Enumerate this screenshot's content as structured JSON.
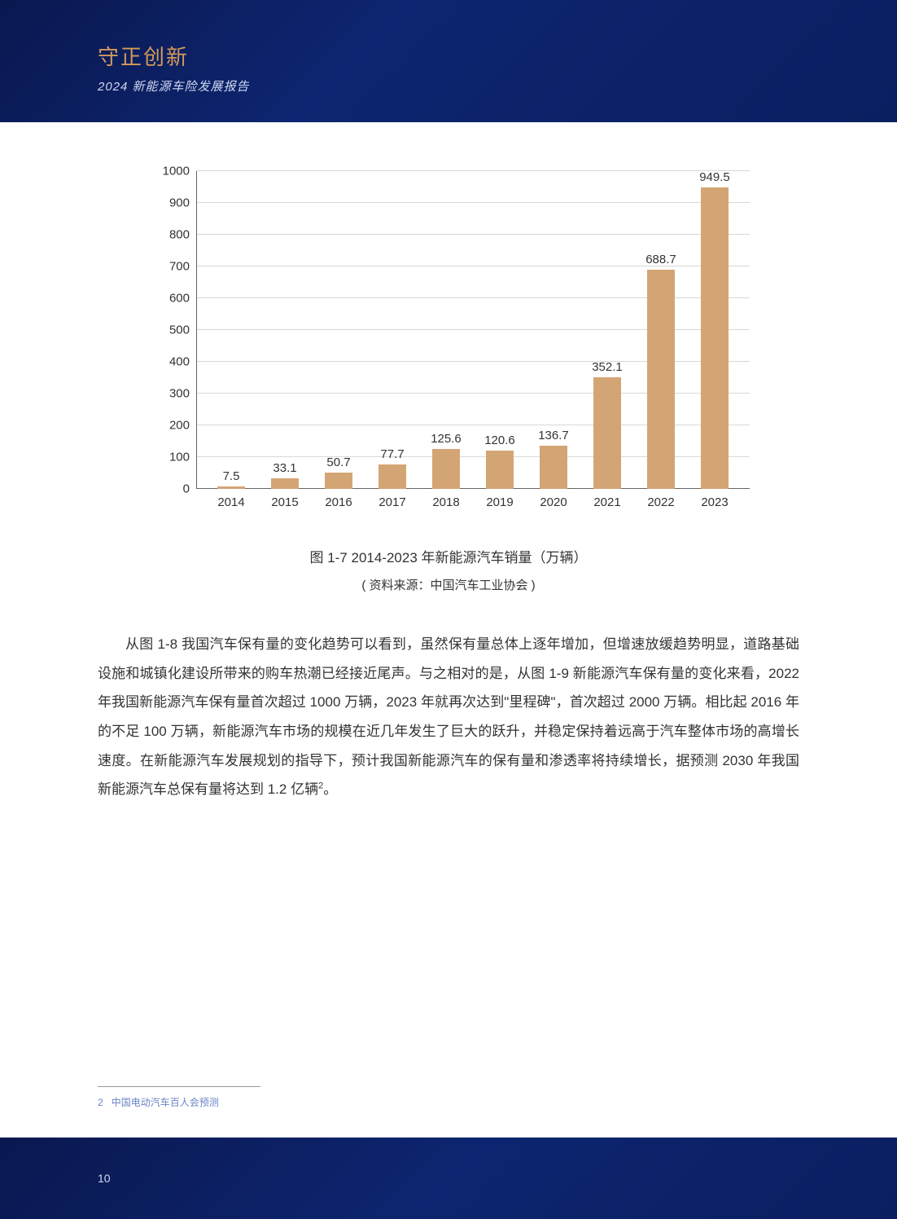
{
  "header": {
    "title": "守正创新",
    "subtitle": "2024 新能源车险发展报告"
  },
  "chart": {
    "type": "bar",
    "categories": [
      "2014",
      "2015",
      "2016",
      "2017",
      "2018",
      "2019",
      "2020",
      "2021",
      "2022",
      "2023"
    ],
    "values": [
      7.5,
      33.1,
      50.7,
      77.7,
      125.6,
      120.6,
      136.7,
      352.1,
      688.7,
      949.5
    ],
    "value_labels": [
      "7.5",
      "33.1",
      "50.7",
      "77.7",
      "125.6",
      "120.6",
      "136.7",
      "352.1",
      "688.7",
      "949.5"
    ],
    "bar_color": "#d4a574",
    "ylim": [
      0,
      1000
    ],
    "ytick_step": 100,
    "yticks": [
      0,
      100,
      200,
      300,
      400,
      500,
      600,
      700,
      800,
      900,
      1000
    ],
    "grid_color": "#d8d8d8",
    "axis_color": "#666666",
    "background_color": "#ffffff",
    "label_fontsize": 15,
    "title": "图 1-7 2014-2023 年新能源汽车销量（万辆）",
    "source": "( 资料来源：中国汽车工业协会 )"
  },
  "body": {
    "paragraph": "从图 1-8 我国汽车保有量的变化趋势可以看到，虽然保有量总体上逐年增加，但增速放缓趋势明显，道路基础设施和城镇化建设所带来的购车热潮已经接近尾声。与之相对的是，从图 1-9 新能源汽车保有量的变化来看，2022 年我国新能源汽车保有量首次超过 1000 万辆，2023 年就再次达到\"里程碑\"，首次超过 2000 万辆。相比起 2016 年的不足 100 万辆，新能源汽车市场的规模在近几年发生了巨大的跃升，并稳定保持着远高于汽车整体市场的高增长速度。在新能源汽车发展规划的指导下，预计我国新能源汽车的保有量和渗透率将持续增长，据预测 2030 年我国新能源汽车总保有量将达到 1.2 亿辆",
    "footnote_marker": "2",
    "paragraph_end": "。"
  },
  "footnote": {
    "number": "2",
    "text": "中国电动汽车百人会预测"
  },
  "page_number": "10"
}
